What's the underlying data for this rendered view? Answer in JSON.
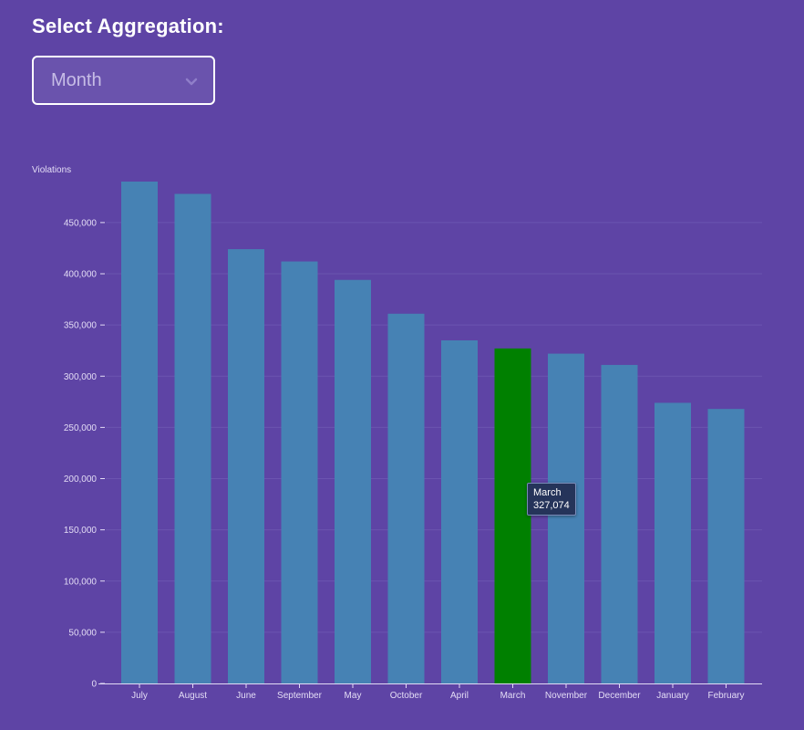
{
  "controls": {
    "heading": "Select Aggregation:",
    "select_value": "Month",
    "select_icon": "chevron-down-icon"
  },
  "colors": {
    "background": "#5e44a5",
    "bar": "#4682b4",
    "bar_highlight": "#008000",
    "grid": "#6b54b0",
    "axis": "#e3dcf5"
  },
  "tooltip": {
    "label": "March",
    "value": "327,074"
  },
  "chart_data": {
    "type": "bar",
    "title": "",
    "xlabel": "",
    "ylabel": "Violations",
    "ylim": [
      0,
      490000
    ],
    "yticks": [
      0,
      50000,
      100000,
      150000,
      200000,
      250000,
      300000,
      350000,
      400000,
      450000
    ],
    "ytick_labels": [
      "0",
      "50,000",
      "100,000",
      "150,000",
      "200,000",
      "250,000",
      "300,000",
      "350,000",
      "400,000",
      "450,000"
    ],
    "grid": true,
    "categories": [
      "July",
      "August",
      "June",
      "September",
      "May",
      "October",
      "April",
      "March",
      "November",
      "December",
      "January",
      "February"
    ],
    "values": [
      490000,
      478000,
      424000,
      412000,
      394000,
      361000,
      335000,
      327074,
      322000,
      311000,
      274000,
      268000
    ],
    "highlighted": "March"
  }
}
